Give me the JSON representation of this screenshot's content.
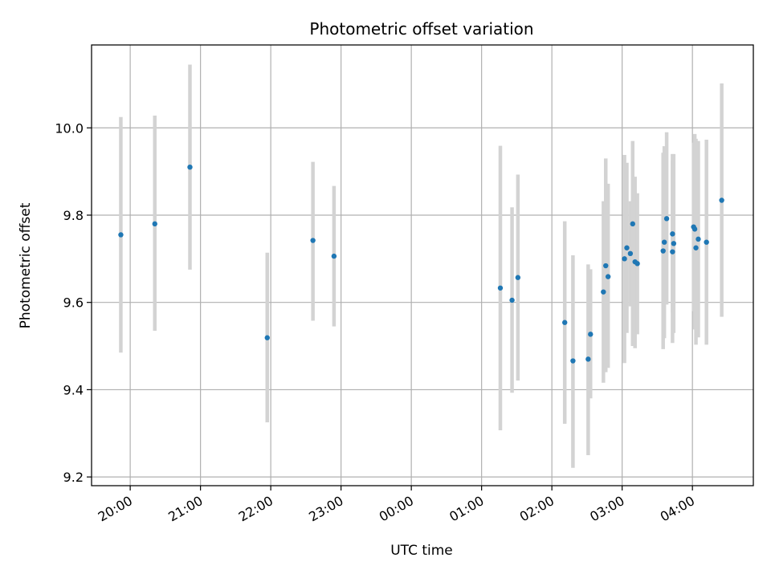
{
  "chart_data": {
    "type": "scatter",
    "title": "Photometric offset variation",
    "xlabel": "UTC time",
    "ylabel": "Photometric offset",
    "x_is_time": true,
    "x_tick_labels": [
      "20:00",
      "21:00",
      "22:00",
      "23:00",
      "00:00",
      "01:00",
      "02:00",
      "03:00",
      "04:00"
    ],
    "x_tick_hours": [
      20,
      21,
      22,
      23,
      24,
      25,
      26,
      27,
      28
    ],
    "y_ticks": [
      9.2,
      9.4,
      9.6,
      9.8,
      10.0
    ],
    "y_tick_labels": [
      "9.2",
      "9.4",
      "9.6",
      "9.8",
      "10.0"
    ],
    "xlim": [
      "19:27",
      "04:52"
    ],
    "ylim": [
      9.18,
      10.19
    ],
    "grid": true,
    "point_color": "#1f77b4",
    "errorbar_color": "#d3d3d3",
    "points": [
      {
        "x": "19:52",
        "y": 9.755,
        "ylow": 9.485,
        "yhigh": 10.025
      },
      {
        "x": "20:21",
        "y": 9.78,
        "ylow": 9.535,
        "yhigh": 10.028
      },
      {
        "x": "20:51",
        "y": 9.91,
        "ylow": 9.675,
        "yhigh": 10.145
      },
      {
        "x": "21:57",
        "y": 9.519,
        "ylow": 9.325,
        "yhigh": 9.714
      },
      {
        "x": "22:36",
        "y": 9.742,
        "ylow": 9.558,
        "yhigh": 9.922
      },
      {
        "x": "22:54",
        "y": 9.706,
        "ylow": 9.545,
        "yhigh": 9.867
      },
      {
        "x": "01:16",
        "y": 9.633,
        "ylow": 9.307,
        "yhigh": 9.959
      },
      {
        "x": "01:26",
        "y": 9.605,
        "ylow": 9.393,
        "yhigh": 9.818
      },
      {
        "x": "01:31",
        "y": 9.657,
        "ylow": 9.421,
        "yhigh": 9.893
      },
      {
        "x": "02:11",
        "y": 9.554,
        "ylow": 9.322,
        "yhigh": 9.786
      },
      {
        "x": "02:18",
        "y": 9.466,
        "ylow": 9.221,
        "yhigh": 9.708
      },
      {
        "x": "02:31",
        "y": 9.47,
        "ylow": 9.25,
        "yhigh": 9.687
      },
      {
        "x": "02:33",
        "y": 9.527,
        "ylow": 9.38,
        "yhigh": 9.676
      },
      {
        "x": "02:44",
        "y": 9.624,
        "ylow": 9.416,
        "yhigh": 9.832
      },
      {
        "x": "02:46",
        "y": 9.684,
        "ylow": 9.44,
        "yhigh": 9.93
      },
      {
        "x": "02:48",
        "y": 9.659,
        "ylow": 9.45,
        "yhigh": 9.872
      },
      {
        "x": "03:02",
        "y": 9.7,
        "ylow": 9.461,
        "yhigh": 9.938
      },
      {
        "x": "03:04",
        "y": 9.725,
        "ylow": 9.53,
        "yhigh": 9.92
      },
      {
        "x": "03:07",
        "y": 9.712,
        "ylow": 9.591,
        "yhigh": 9.832
      },
      {
        "x": "03:09",
        "y": 9.78,
        "ylow": 9.5,
        "yhigh": 9.97
      },
      {
        "x": "03:11",
        "y": 9.693,
        "ylow": 9.495,
        "yhigh": 9.888
      },
      {
        "x": "03:13",
        "y": 9.689,
        "ylow": 9.527,
        "yhigh": 9.85
      },
      {
        "x": "03:35",
        "y": 9.718,
        "ylow": 9.493,
        "yhigh": 9.943
      },
      {
        "x": "03:36",
        "y": 9.738,
        "ylow": 9.518,
        "yhigh": 9.958
      },
      {
        "x": "03:38",
        "y": 9.792,
        "ylow": 9.595,
        "yhigh": 9.99
      },
      {
        "x": "03:43",
        "y": 9.716,
        "ylow": 9.507,
        "yhigh": 9.925
      },
      {
        "x": "03:43",
        "y": 9.757,
        "ylow": 9.577,
        "yhigh": 9.94
      },
      {
        "x": "03:44",
        "y": 9.735,
        "ylow": 9.53,
        "yhigh": 9.94
      },
      {
        "x": "04:01",
        "y": 9.773,
        "ylow": 9.58,
        "yhigh": 9.966
      },
      {
        "x": "04:02",
        "y": 9.768,
        "ylow": 9.538,
        "yhigh": 9.986
      },
      {
        "x": "04:03",
        "y": 9.725,
        "ylow": 9.503,
        "yhigh": 9.975
      },
      {
        "x": "04:05",
        "y": 9.745,
        "ylow": 9.52,
        "yhigh": 9.97
      },
      {
        "x": "04:12",
        "y": 9.738,
        "ylow": 9.503,
        "yhigh": 9.973
      },
      {
        "x": "04:25",
        "y": 9.834,
        "ylow": 9.567,
        "yhigh": 10.102
      }
    ]
  }
}
